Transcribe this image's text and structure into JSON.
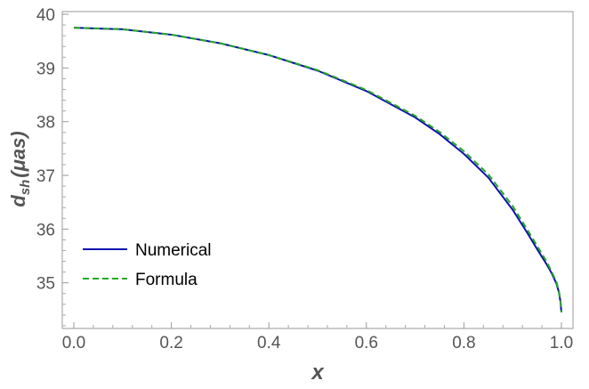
{
  "chart_data": {
    "type": "line",
    "xlabel": "x",
    "ylabel": {
      "main": "d",
      "sub": "sh",
      "unit": "(μas)"
    },
    "xlim": [
      0,
      1
    ],
    "ylim": [
      34.15,
      40.05
    ],
    "x_ticks": [
      "0.0",
      "0.2",
      "0.4",
      "0.6",
      "0.8",
      "1.0"
    ],
    "y_ticks": [
      "35",
      "36",
      "37",
      "38",
      "39",
      "40"
    ],
    "grid": false,
    "legend_position": "bottom-left",
    "series": [
      {
        "name": "Numerical",
        "color": "#1010b0",
        "style": "solid",
        "x": [
          0.0,
          0.1,
          0.2,
          0.3,
          0.4,
          0.5,
          0.6,
          0.7,
          0.75,
          0.8,
          0.85,
          0.9,
          0.93,
          0.95,
          0.97,
          0.98,
          0.99,
          0.995,
          0.998,
          1.0
        ],
        "y": [
          39.75,
          39.72,
          39.62,
          39.46,
          39.24,
          38.95,
          38.57,
          38.08,
          37.77,
          37.4,
          36.96,
          36.36,
          35.93,
          35.63,
          35.34,
          35.18,
          34.98,
          34.82,
          34.65,
          34.45
        ]
      },
      {
        "name": "Formula",
        "color": "#22aa22",
        "style": "dashed",
        "x": [
          0.0,
          0.1,
          0.2,
          0.3,
          0.4,
          0.5,
          0.6,
          0.7,
          0.75,
          0.8,
          0.85,
          0.9,
          0.93,
          0.95,
          0.97,
          0.98,
          0.99,
          0.995,
          0.998,
          1.0
        ],
        "y": [
          39.75,
          39.72,
          39.62,
          39.46,
          39.24,
          38.96,
          38.59,
          38.11,
          37.81,
          37.45,
          37.02,
          36.43,
          35.99,
          35.69,
          35.39,
          35.21,
          35.01,
          34.84,
          34.66,
          34.45
        ]
      }
    ]
  }
}
